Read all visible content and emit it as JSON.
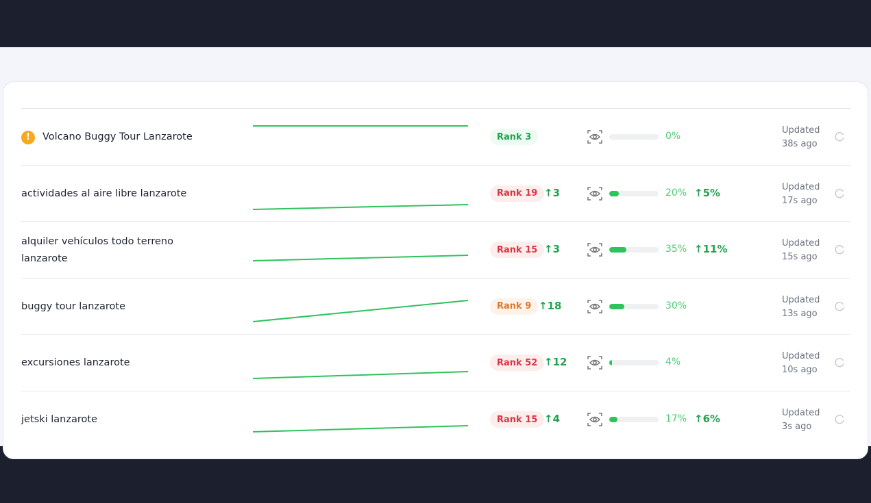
{
  "colors": {
    "up": "#23a352",
    "bar": "#2ec35b",
    "warning": "#f6a821"
  },
  "rows": [
    {
      "keyword": "Volcano Buggy Tour Lanzarote",
      "warning": true,
      "rank": "Rank 3",
      "rank_tone": "good",
      "rank_change": "",
      "visibility": "0%",
      "visibility_value": 0,
      "visibility_change": "",
      "updated": "Updated",
      "updated_ago": "38s ago",
      "spark": [
        25,
        25
      ]
    },
    {
      "keyword": "actividades al aire libre lanzarote",
      "warning": false,
      "rank": "Rank 19",
      "rank_tone": "bad",
      "rank_change": "3",
      "visibility": "20%",
      "visibility_value": 20,
      "visibility_change": "5%",
      "updated": "Updated",
      "updated_ago": "17s ago",
      "spark": [
        64,
        57
      ]
    },
    {
      "keyword": "alquiler vehículos todo terreno lanzarote",
      "warning": false,
      "rank": "Rank 15",
      "rank_tone": "bad",
      "rank_change": "3",
      "visibility": "35%",
      "visibility_value": 35,
      "visibility_change": "11%",
      "updated": "Updated",
      "updated_ago": "15s ago",
      "spark": [
        57,
        49
      ]
    },
    {
      "keyword": "buggy tour lanzarote",
      "warning": false,
      "rank": "Rank 9",
      "rank_tone": "mid",
      "rank_change": "18",
      "visibility": "30%",
      "visibility_value": 30,
      "visibility_change": "",
      "updated": "Updated",
      "updated_ago": "13s ago",
      "spark": [
        63,
        32
      ]
    },
    {
      "keyword": "excursiones lanzarote",
      "warning": false,
      "rank": "Rank 52",
      "rank_tone": "bad",
      "rank_change": "12",
      "visibility": "4%",
      "visibility_value": 4,
      "visibility_change": "",
      "updated": "Updated",
      "updated_ago": "10s ago",
      "spark": [
        64,
        54
      ]
    },
    {
      "keyword": "jetski lanzarote",
      "warning": false,
      "rank": "Rank 15",
      "rank_tone": "bad",
      "rank_change": "4",
      "visibility": "17%",
      "visibility_value": 17,
      "visibility_change": "6%",
      "updated": "Updated",
      "updated_ago": "3s ago",
      "spark": [
        59,
        50
      ]
    }
  ]
}
